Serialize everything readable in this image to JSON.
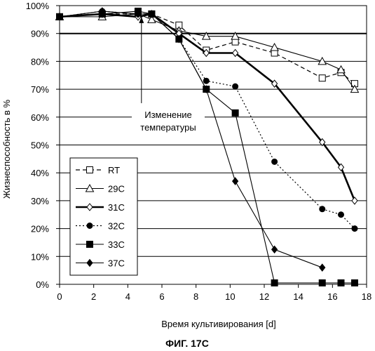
{
  "chart_data": {
    "type": "line",
    "title": "",
    "xlabel": "Время культивирования [d]",
    "ylabel": "Жизнеспособность в %",
    "xlim": [
      0,
      18
    ],
    "ylim": [
      0,
      100
    ],
    "x_ticks": [
      0,
      2,
      4,
      6,
      8,
      10,
      12,
      14,
      16,
      18
    ],
    "y_ticks": [
      0,
      10,
      20,
      30,
      40,
      50,
      60,
      70,
      80,
      90,
      100
    ],
    "x_tick_labels": [
      "0",
      "2",
      "4",
      "6",
      "8",
      "10",
      "12",
      "14",
      "16",
      "18"
    ],
    "y_tick_labels": [
      "0%",
      "10%",
      "20%",
      "30%",
      "40%",
      "50%",
      "60%",
      "70%",
      "80%",
      "90%",
      "100%"
    ],
    "grid": "horizontal",
    "legend_position": "bottom-left",
    "reference_line": 90,
    "annotation": {
      "lines": [
        "Изменение",
        "температуры"
      ],
      "arrow_x": 4.8,
      "arrow_to_y": 96,
      "arrow_from_y": 65
    },
    "series": [
      {
        "name": "RT",
        "marker": "square-open",
        "style": "dashed",
        "color": "#000000",
        "x": [
          0,
          2.5,
          4.6,
          5.4,
          7,
          8.6,
          10.3,
          12.6,
          15.4,
          16.5,
          17.3
        ],
        "y": [
          96,
          97,
          97,
          97,
          93,
          84,
          87,
          83,
          74,
          76,
          72
        ]
      },
      {
        "name": "29C",
        "marker": "triangle-open",
        "style": "solid-thin",
        "color": "#000000",
        "x": [
          0,
          2.5,
          4.6,
          5.4,
          7,
          8.6,
          10.3,
          12.6,
          15.4,
          16.5,
          17.3
        ],
        "y": [
          96,
          96,
          97,
          95,
          91,
          89,
          89,
          85,
          80,
          77,
          70
        ]
      },
      {
        "name": "31C",
        "marker": "diamond-open",
        "style": "solid-thick",
        "color": "#000000",
        "x": [
          0,
          2.5,
          4.6,
          5.4,
          7,
          8.6,
          10.3,
          12.6,
          15.4,
          16.5,
          17.3
        ],
        "y": [
          96,
          97,
          96,
          97,
          90,
          83,
          83,
          72,
          51,
          42,
          30
        ]
      },
      {
        "name": "32C",
        "marker": "circle-filled",
        "style": "dotted",
        "color": "#000000",
        "x": [
          0,
          2.5,
          4.6,
          5.4,
          7,
          8.6,
          10.3,
          12.6,
          15.4,
          16.5,
          17.3
        ],
        "y": [
          96,
          98,
          97,
          97,
          88,
          73,
          71,
          44,
          27,
          25,
          20
        ]
      },
      {
        "name": "33C",
        "marker": "square-filled",
        "style": "solid-thin",
        "color": "#000000",
        "x": [
          0,
          2.5,
          4.6,
          5.4,
          7,
          8.6,
          10.3,
          12.6,
          15.4,
          16.5,
          17.3
        ],
        "y": [
          96,
          97,
          98,
          97,
          88,
          70,
          61.5,
          0.5,
          0.5,
          0.5,
          0.5
        ]
      },
      {
        "name": "37C",
        "marker": "diamond-filled",
        "style": "solid-thin",
        "color": "#000000",
        "x": [
          0,
          2.5,
          4.6,
          5.4,
          7,
          8.6,
          10.3,
          12.6,
          15.4
        ],
        "y": [
          96,
          98,
          97,
          97,
          88,
          70,
          37,
          12.5,
          6
        ]
      }
    ]
  },
  "figure_caption": "ФИГ. 17C"
}
